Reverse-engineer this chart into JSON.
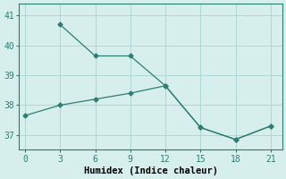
{
  "line1_x": [
    3,
    6,
    9,
    12,
    15,
    18,
    21
  ],
  "line1_y": [
    40.7,
    39.65,
    39.65,
    38.65,
    37.25,
    36.85,
    37.3
  ],
  "line2_x": [
    0,
    3,
    6,
    9,
    12,
    15,
    18,
    21
  ],
  "line2_y": [
    37.65,
    38.0,
    38.2,
    38.4,
    38.65,
    37.25,
    36.85,
    37.3
  ],
  "line_color": "#2e7d72",
  "bg_color": "#d6efec",
  "grid_color": "#aed8d4",
  "xlabel": "Humidex (Indice chaleur)",
  "xlim": [
    -0.5,
    22.0
  ],
  "ylim": [
    36.5,
    41.4
  ],
  "xticks": [
    0,
    3,
    6,
    9,
    12,
    15,
    18,
    21
  ],
  "yticks": [
    37,
    38,
    39,
    40,
    41
  ],
  "marker": "D",
  "markersize": 2.5,
  "linewidth": 0.9,
  "xlabel_fontsize": 7.5,
  "tick_fontsize": 7
}
